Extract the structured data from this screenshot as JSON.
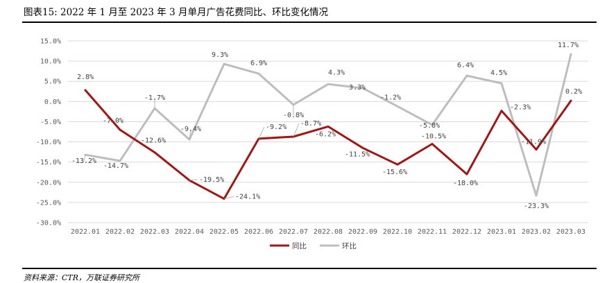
{
  "figure": {
    "title": "图表15:  2022 年 1 月至 2023 年 3 月单月广告花费同比、环比变化情况",
    "source": "资料来源：CTR，万联证券研究所"
  },
  "chart_data": {
    "type": "line",
    "categories": [
      "2022.01",
      "2022.02",
      "2022.03",
      "2022.04",
      "2022.05",
      "2022.06",
      "2022.07",
      "2022.08",
      "2022.09",
      "2022.10",
      "2022.11",
      "2022.12",
      "2023.01",
      "2023.02",
      "2023.03"
    ],
    "series": [
      {
        "name": "同比",
        "color": "#a31515",
        "values": [
          2.8,
          -7.0,
          -12.6,
          -19.5,
          -24.1,
          -9.2,
          -8.7,
          -6.2,
          -11.5,
          -15.6,
          -10.5,
          -18.0,
          -2.3,
          -11.9,
          0.2
        ],
        "labels": [
          "2.8%",
          "-7.0%",
          "-12.6%",
          "-19.5%",
          "-24.1%",
          "-9.2%",
          "-8.7%",
          "-6.2%",
          "-11.5%",
          "-15.6%",
          "-10.5%",
          "-18.0%",
          "-2.3%",
          "-11.9%",
          "0.2%"
        ]
      },
      {
        "name": "环比",
        "color": "#bdbdbd",
        "values": [
          -13.2,
          -14.7,
          -1.7,
          -9.4,
          9.3,
          6.9,
          -0.8,
          4.3,
          3.3,
          -1.2,
          -5.8,
          6.4,
          4.5,
          -23.3,
          11.7
        ],
        "labels": [
          "-13.2%",
          "-14.7%",
          "-1.7%",
          "-9.4%",
          "9.3%",
          "6.9%",
          "-0.8%",
          "4.3%",
          "3.3%",
          "-1.2%",
          "-5.8%",
          "6.4%",
          "4.5%",
          "-23.3%",
          "11.7%"
        ]
      }
    ],
    "yticks": [
      15,
      10,
      5,
      0,
      -5,
      -10,
      -15,
      -20,
      -25,
      -30
    ],
    "ytick_labels": [
      "15.0%",
      "10.0%",
      "5.0%",
      "0.0%",
      "-5.0%",
      "-10.0%",
      "-15.0%",
      "-20.0%",
      "-25.0%",
      "-30.0%"
    ],
    "ylim": [
      -30,
      15
    ],
    "grid": "horizontal",
    "legend": "bottom-center"
  }
}
